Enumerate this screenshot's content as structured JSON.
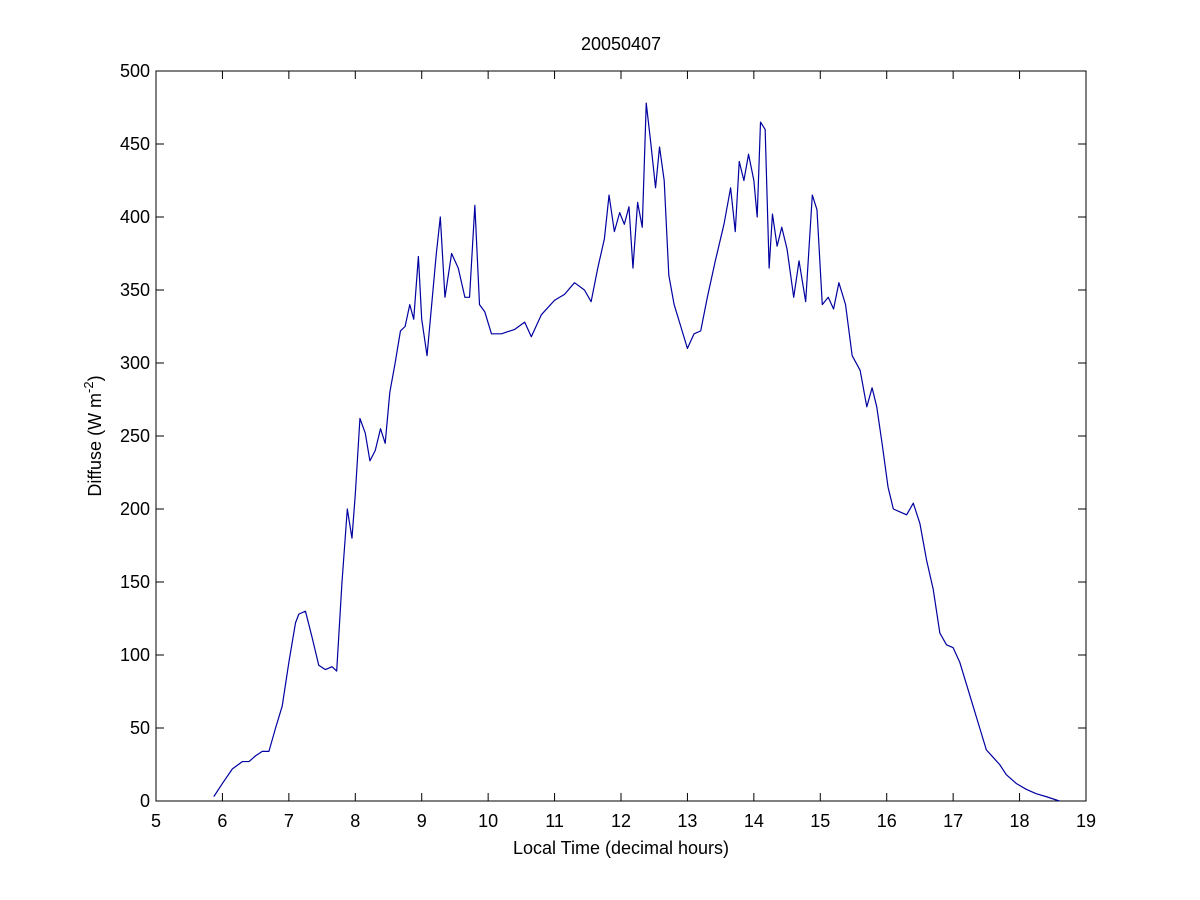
{
  "chart_data": {
    "type": "line",
    "title": "20050407",
    "xlabel": "Local Time (decimal hours)",
    "ylabel": {
      "base": "Diffuse (W m",
      "superscript": "-2",
      "suffix": ")"
    },
    "xlim": [
      5,
      19
    ],
    "ylim": [
      0,
      500
    ],
    "xticks": [
      5,
      6,
      7,
      8,
      9,
      10,
      11,
      12,
      13,
      14,
      15,
      16,
      17,
      18,
      19
    ],
    "yticks": [
      0,
      50,
      100,
      150,
      200,
      250,
      300,
      350,
      400,
      450,
      500
    ],
    "grid": false,
    "series": [
      {
        "color": "#0000a0",
        "x": [
          5.87,
          6.0,
          6.15,
          6.3,
          6.4,
          6.5,
          6.6,
          6.7,
          6.8,
          6.9,
          7.0,
          7.1,
          7.15,
          7.25,
          7.35,
          7.45,
          7.55,
          7.65,
          7.72,
          7.8,
          7.88,
          7.95,
          8.0,
          8.07,
          8.15,
          8.22,
          8.3,
          8.38,
          8.45,
          8.52,
          8.6,
          8.68,
          8.75,
          8.82,
          8.88,
          8.95,
          9.0,
          9.08,
          9.15,
          9.22,
          9.28,
          9.35,
          9.45,
          9.55,
          9.65,
          9.72,
          9.8,
          9.87,
          9.95,
          10.05,
          10.2,
          10.4,
          10.55,
          10.65,
          10.8,
          11.0,
          11.15,
          11.3,
          11.45,
          11.55,
          11.65,
          11.75,
          11.82,
          11.9,
          11.98,
          12.05,
          12.12,
          12.18,
          12.25,
          12.32,
          12.38,
          12.45,
          12.52,
          12.58,
          12.65,
          12.72,
          12.8,
          12.9,
          13.0,
          13.1,
          13.2,
          13.3,
          13.42,
          13.55,
          13.65,
          13.72,
          13.78,
          13.85,
          13.92,
          14.0,
          14.05,
          14.1,
          14.17,
          14.23,
          14.28,
          14.35,
          14.42,
          14.5,
          14.6,
          14.68,
          14.78,
          14.88,
          14.95,
          15.03,
          15.12,
          15.2,
          15.28,
          15.38,
          15.48,
          15.6,
          15.7,
          15.78,
          15.85,
          15.93,
          16.02,
          16.1,
          16.2,
          16.3,
          16.4,
          16.5,
          16.6,
          16.7,
          16.8,
          16.9,
          17.0,
          17.1,
          17.2,
          17.3,
          17.4,
          17.5,
          17.6,
          17.7,
          17.8,
          17.95,
          18.1,
          18.25,
          18.4,
          18.6
        ],
        "values": [
          3,
          12,
          22,
          27,
          27,
          31,
          34,
          34,
          50,
          65,
          95,
          122,
          128,
          130,
          112,
          93,
          90,
          92,
          89,
          150,
          200,
          180,
          210,
          262,
          252,
          233,
          240,
          255,
          245,
          280,
          300,
          322,
          325,
          340,
          330,
          373,
          330,
          305,
          340,
          375,
          400,
          345,
          375,
          365,
          345,
          345,
          408,
          340,
          335,
          320,
          320,
          323,
          328,
          318,
          333,
          343,
          347,
          355,
          350,
          342,
          365,
          385,
          415,
          390,
          403,
          395,
          407,
          365,
          410,
          393,
          478,
          450,
          420,
          448,
          425,
          360,
          340,
          325,
          310,
          320,
          322,
          345,
          370,
          395,
          420,
          390,
          438,
          425,
          443,
          425,
          400,
          465,
          460,
          365,
          402,
          380,
          393,
          378,
          345,
          370,
          342,
          415,
          405,
          340,
          345,
          337,
          355,
          340,
          305,
          295,
          270,
          283,
          270,
          245,
          215,
          200,
          198,
          196,
          204,
          190,
          165,
          145,
          115,
          107,
          105,
          95,
          80,
          65,
          50,
          35,
          30,
          25,
          18,
          12,
          8,
          5,
          3,
          0
        ]
      }
    ]
  }
}
